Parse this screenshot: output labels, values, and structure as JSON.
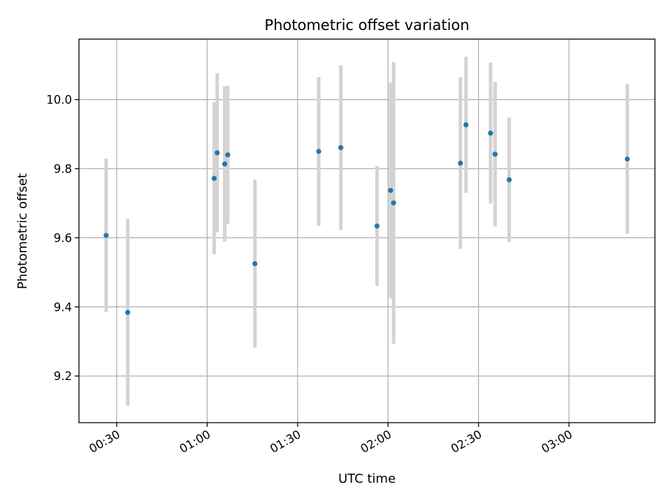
{
  "chart_data": {
    "type": "scatter",
    "title": "Photometric offset variation",
    "xlabel": "UTC time",
    "ylabel": "Photometric offset",
    "xlim": [
      "00:17:30",
      "03:28:30"
    ],
    "ylim": [
      9.065,
      10.175
    ],
    "grid": true,
    "x_ticks": [
      "00:30",
      "01:00",
      "01:30",
      "02:00",
      "02:30",
      "03:00"
    ],
    "y_ticks": [
      "9.2",
      "9.4",
      "9.6",
      "9.8",
      "10.0"
    ],
    "colors": {
      "point": "#1f77b4",
      "errorbar": "#d3d3d3",
      "grid": "#b0b0b0",
      "axes": "#000000"
    },
    "series": [
      {
        "points": [
          {
            "x": "00:26:30",
            "y": 9.607,
            "err": 0.222
          },
          {
            "x": "00:33:40",
            "y": 9.384,
            "err": 0.27
          },
          {
            "x": "01:02:20",
            "y": 9.772,
            "err": 0.22
          },
          {
            "x": "01:03:20",
            "y": 9.846,
            "err": 0.23
          },
          {
            "x": "01:05:50",
            "y": 9.814,
            "err": 0.225
          },
          {
            "x": "01:06:50",
            "y": 9.84,
            "err": 0.2
          },
          {
            "x": "01:15:50",
            "y": 9.525,
            "err": 0.243
          },
          {
            "x": "01:37:00",
            "y": 9.85,
            "err": 0.215
          },
          {
            "x": "01:44:20",
            "y": 9.861,
            "err": 0.238
          },
          {
            "x": "01:56:20",
            "y": 9.634,
            "err": 0.173
          },
          {
            "x": "02:00:50",
            "y": 9.737,
            "err": 0.312
          },
          {
            "x": "02:01:50",
            "y": 9.701,
            "err": 0.408
          },
          {
            "x": "02:24:00",
            "y": 9.816,
            "err": 0.248
          },
          {
            "x": "02:25:50",
            "y": 9.927,
            "err": 0.197
          },
          {
            "x": "02:34:00",
            "y": 9.903,
            "err": 0.204
          },
          {
            "x": "02:35:30",
            "y": 9.842,
            "err": 0.209
          },
          {
            "x": "02:40:10",
            "y": 9.768,
            "err": 0.18
          },
          {
            "x": "03:19:20",
            "y": 9.828,
            "err": 0.216
          }
        ]
      }
    ]
  }
}
